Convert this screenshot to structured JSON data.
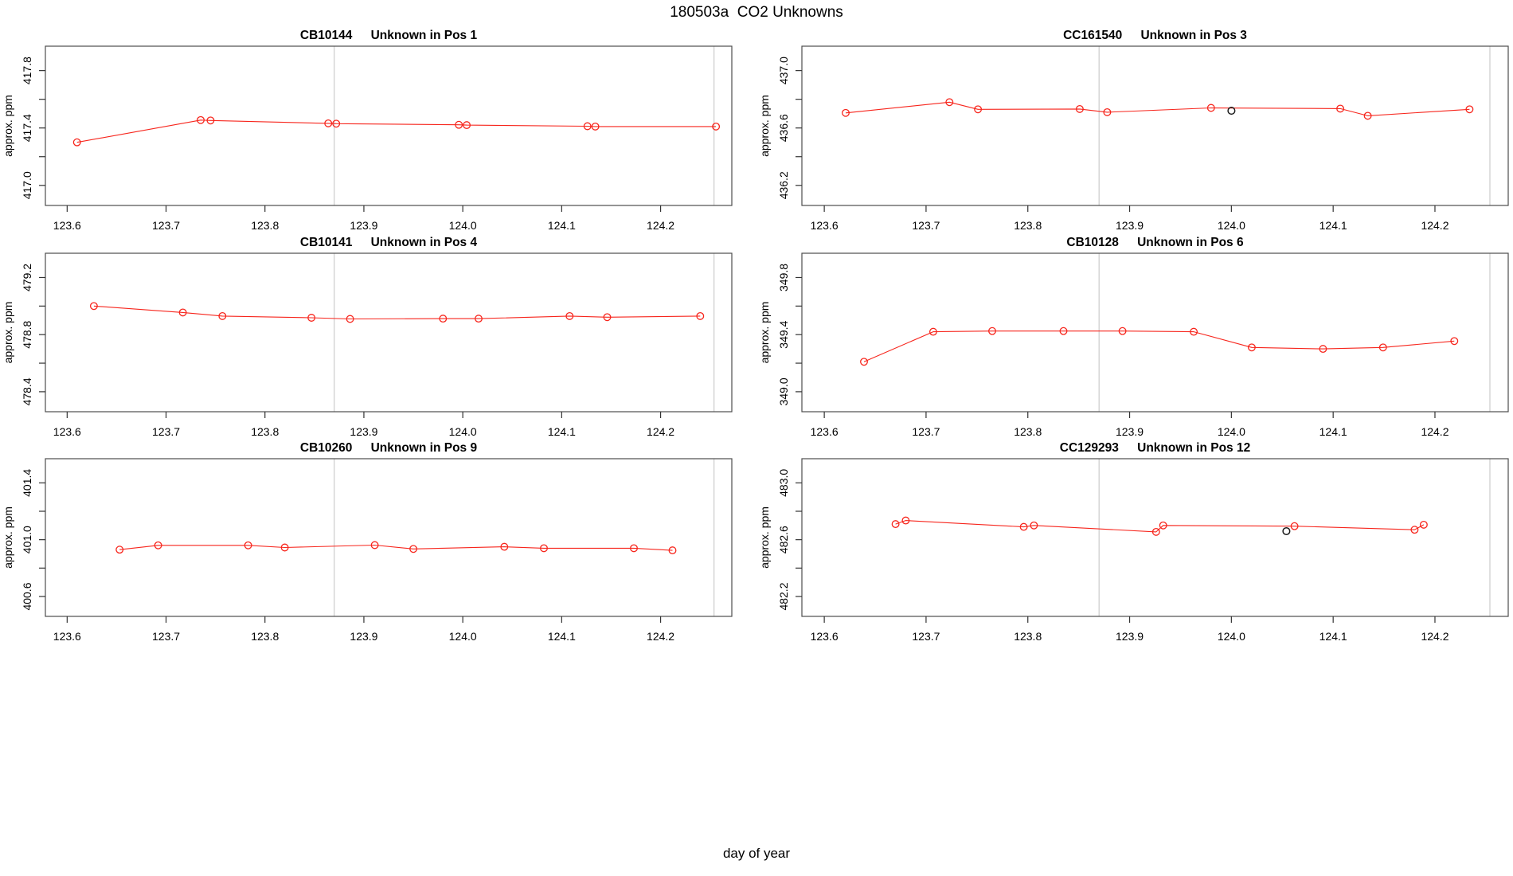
{
  "title": "180503a  CO2 Unknowns",
  "xlabel": "day of year",
  "colors": {
    "series": "#f7251c",
    "outlier": "#1a1a1a",
    "grid": "#cccccc",
    "frame": "#4d4d4d",
    "tick": "#333333",
    "text": "#000000"
  },
  "chart_data": [
    {
      "type": "line",
      "sample": "CB10144",
      "label": "Unknown in Pos 1",
      "ylabel": "approx. ppm",
      "xlim": [
        123.578,
        124.272
      ],
      "ylim": [
        416.86,
        417.97
      ],
      "x_ticks": [
        123.6,
        123.7,
        123.8,
        123.9,
        124.0,
        124.1,
        124.2
      ],
      "y_ticks": [
        417.0,
        417.2,
        417.4,
        417.6,
        417.8
      ],
      "y_tick_labels": [
        417.0,
        417.4,
        417.8
      ],
      "grid_x": [
        123.87,
        124.254
      ],
      "points": [
        [
          123.61,
          417.3
        ],
        [
          123.735,
          417.455
        ],
        [
          123.745,
          417.452
        ],
        [
          123.864,
          417.432
        ],
        [
          123.872,
          417.43
        ],
        [
          123.996,
          417.422
        ],
        [
          124.004,
          417.42
        ],
        [
          124.126,
          417.412
        ],
        [
          124.134,
          417.41
        ],
        [
          124.256,
          417.41
        ]
      ],
      "outlier_points": []
    },
    {
      "type": "line",
      "sample": "CC161540",
      "label": "Unknown in Pos 3",
      "ylabel": "approx. ppm",
      "xlim": [
        123.578,
        124.272
      ],
      "ylim": [
        436.06,
        437.17
      ],
      "x_ticks": [
        123.6,
        123.7,
        123.8,
        123.9,
        124.0,
        124.1,
        124.2
      ],
      "y_ticks": [
        436.2,
        436.4,
        436.6,
        436.8,
        437.0
      ],
      "y_tick_labels": [
        436.2,
        436.6,
        437.0
      ],
      "grid_x": [
        123.87,
        124.254
      ],
      "points": [
        [
          123.621,
          436.705
        ],
        [
          123.723,
          436.78
        ],
        [
          123.751,
          436.73
        ],
        [
          123.851,
          436.732
        ],
        [
          123.878,
          436.71
        ],
        [
          123.98,
          436.74
        ],
        [
          124.107,
          436.735
        ],
        [
          124.134,
          436.685
        ],
        [
          124.234,
          436.73
        ]
      ],
      "outlier_points": [
        [
          124.0,
          436.72
        ]
      ]
    },
    {
      "type": "line",
      "sample": "CB10141",
      "label": "Unknown in Pos 4",
      "ylabel": "approx. ppm",
      "xlim": [
        123.578,
        124.272
      ],
      "ylim": [
        478.26,
        479.37
      ],
      "x_ticks": [
        123.6,
        123.7,
        123.8,
        123.9,
        124.0,
        124.1,
        124.2
      ],
      "y_ticks": [
        478.4,
        478.6,
        478.8,
        479.0,
        479.2
      ],
      "y_tick_labels": [
        478.4,
        478.8,
        479.2
      ],
      "grid_x": [
        123.87,
        124.254
      ],
      "points": [
        [
          123.627,
          479.0
        ],
        [
          123.717,
          478.955
        ],
        [
          123.757,
          478.93
        ],
        [
          123.847,
          478.918
        ],
        [
          123.886,
          478.91
        ],
        [
          123.98,
          478.912
        ],
        [
          124.016,
          478.912
        ],
        [
          124.108,
          478.93
        ],
        [
          124.146,
          478.922
        ],
        [
          124.24,
          478.93
        ]
      ],
      "outlier_points": []
    },
    {
      "type": "line",
      "sample": "CB10128",
      "label": "Unknown in Pos 6",
      "ylabel": "approx. ppm",
      "xlim": [
        123.578,
        124.272
      ],
      "ylim": [
        348.86,
        349.97
      ],
      "x_ticks": [
        123.6,
        123.7,
        123.8,
        123.9,
        124.0,
        124.1,
        124.2
      ],
      "y_ticks": [
        349.0,
        349.2,
        349.4,
        349.6,
        349.8
      ],
      "y_tick_labels": [
        349.0,
        349.4,
        349.8
      ],
      "grid_x": [
        123.87,
        124.254
      ],
      "points": [
        [
          123.639,
          349.21
        ],
        [
          123.707,
          349.42
        ],
        [
          123.765,
          349.425
        ],
        [
          123.835,
          349.425
        ],
        [
          123.893,
          349.425
        ],
        [
          123.963,
          349.42
        ],
        [
          124.02,
          349.31
        ],
        [
          124.09,
          349.3
        ],
        [
          124.149,
          349.31
        ],
        [
          124.219,
          349.355
        ]
      ],
      "outlier_points": []
    },
    {
      "type": "line",
      "sample": "CB10260",
      "label": "Unknown in Pos 9",
      "ylabel": "approx. ppm",
      "xlim": [
        123.578,
        124.272
      ],
      "ylim": [
        400.46,
        401.57
      ],
      "x_ticks": [
        123.6,
        123.7,
        123.8,
        123.9,
        124.0,
        124.1,
        124.2
      ],
      "y_ticks": [
        400.6,
        400.8,
        401.0,
        401.2,
        401.4
      ],
      "y_tick_labels": [
        400.6,
        401.0,
        401.4
      ],
      "grid_x": [
        123.87,
        124.254
      ],
      "points": [
        [
          123.653,
          400.93
        ],
        [
          123.692,
          400.96
        ],
        [
          123.783,
          400.96
        ],
        [
          123.82,
          400.945
        ],
        [
          123.911,
          400.962
        ],
        [
          123.95,
          400.935
        ],
        [
          124.042,
          400.95
        ],
        [
          124.082,
          400.94
        ],
        [
          124.173,
          400.94
        ],
        [
          124.212,
          400.925
        ]
      ],
      "outlier_points": []
    },
    {
      "type": "line",
      "sample": "CC129293",
      "label": "Unknown in Pos 12",
      "ylabel": "approx. ppm",
      "xlim": [
        123.578,
        124.272
      ],
      "ylim": [
        482.06,
        483.17
      ],
      "x_ticks": [
        123.6,
        123.7,
        123.8,
        123.9,
        124.0,
        124.1,
        124.2
      ],
      "y_ticks": [
        482.2,
        482.4,
        482.6,
        482.8,
        483.0
      ],
      "y_tick_labels": [
        482.2,
        482.6,
        483.0
      ],
      "grid_x": [
        123.87,
        124.254
      ],
      "points": [
        [
          123.67,
          482.71
        ],
        [
          123.68,
          482.735
        ],
        [
          123.796,
          482.69
        ],
        [
          123.806,
          482.7
        ],
        [
          123.926,
          482.655
        ],
        [
          123.933,
          482.7
        ],
        [
          124.062,
          482.695
        ],
        [
          124.18,
          482.67
        ],
        [
          124.189,
          482.705
        ]
      ],
      "outlier_points": [
        [
          124.054,
          482.66
        ]
      ]
    }
  ]
}
